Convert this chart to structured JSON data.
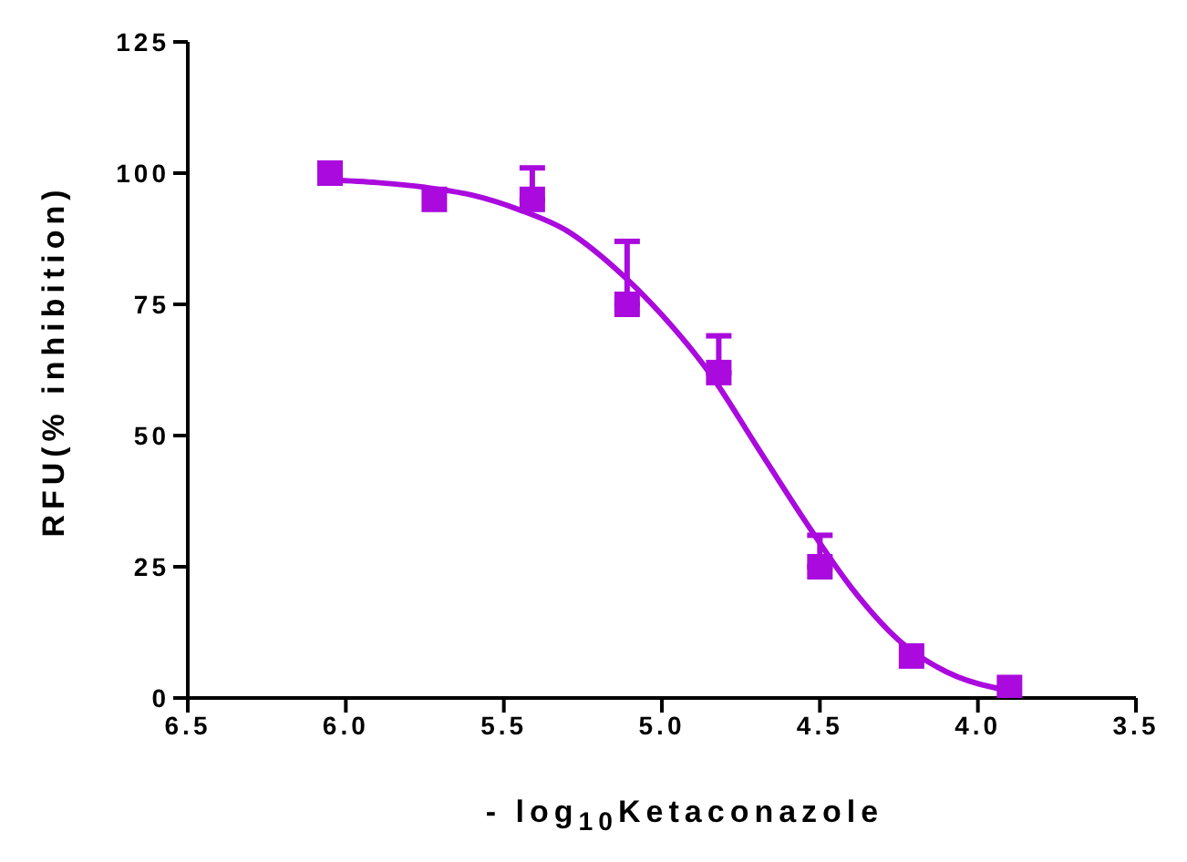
{
  "chart_data": {
    "type": "scatter",
    "xlabel": "- log$_{10}$Ketaconazole",
    "ylabel": "RFU(% inhibition)",
    "xlim": [
      6.5,
      3.5
    ],
    "xticks": [
      {
        "value": 6.5,
        "label": "6.5"
      },
      {
        "value": 6.0,
        "label": "6.0"
      },
      {
        "value": 5.5,
        "label": "5.5"
      },
      {
        "value": 5.0,
        "label": "5.0"
      },
      {
        "value": 4.5,
        "label": "4.5"
      },
      {
        "value": 4.0,
        "label": "4.0"
      },
      {
        "value": 3.5,
        "label": "3.5"
      }
    ],
    "ylim": [
      0,
      125
    ],
    "yticks": [
      0,
      25,
      50,
      75,
      100,
      125
    ],
    "grid": false,
    "series": [
      {
        "type": "line",
        "color": "#aa0add",
        "marker": "none",
        "x": [
          6.05,
          5.9,
          5.75,
          5.6,
          5.45,
          5.3,
          5.15,
          5.0,
          4.85,
          4.7,
          4.55,
          4.4,
          4.25,
          4.1,
          3.95,
          3.9
        ],
        "values": [
          98.7,
          98.2,
          97.3,
          95.8,
          93,
          89,
          82,
          73,
          62,
          48,
          34,
          21,
          11,
          5,
          2,
          1.5
        ]
      },
      {
        "color": "#aa0add",
        "marker": "square",
        "x": [
          6.05,
          5.72,
          5.41,
          5.11,
          4.82,
          4.5,
          4.21,
          3.9
        ],
        "values": [
          100,
          95,
          95,
          75,
          62,
          25,
          8,
          2
        ],
        "errors": [
          null,
          null,
          [
            95,
            101
          ],
          [
            75,
            87
          ],
          [
            62,
            69
          ],
          [
            25,
            31
          ],
          null,
          null
        ]
      }
    ]
  }
}
